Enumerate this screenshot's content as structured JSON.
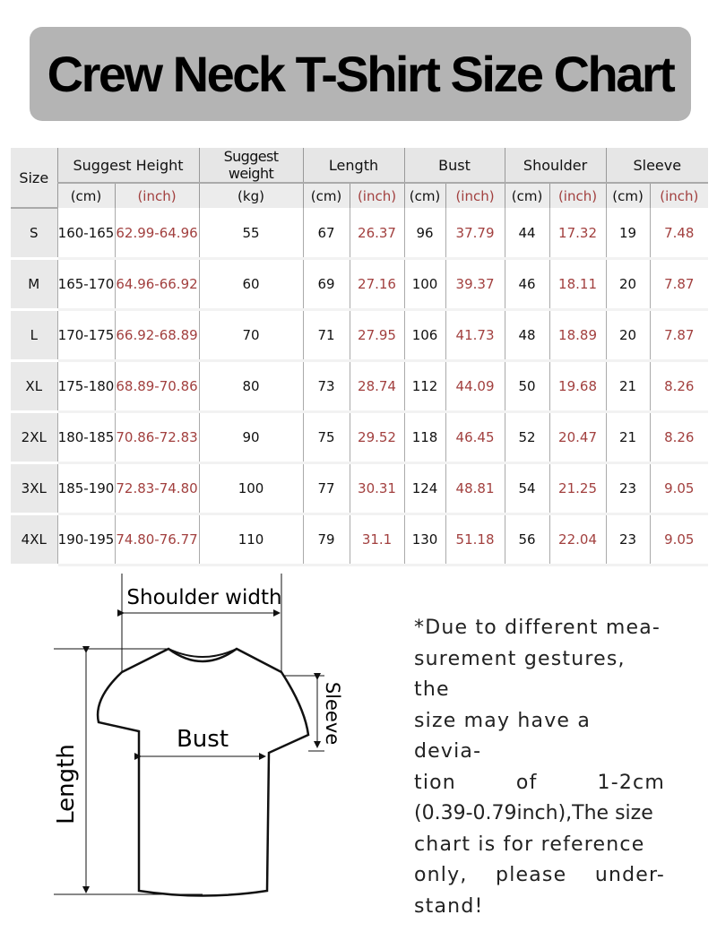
{
  "title": "Crew Neck T-Shirt Size Chart",
  "table": {
    "headers": {
      "size": "Size",
      "height": "Suggest Height",
      "weight": "Suggest weight",
      "length": "Length",
      "bust": "Bust",
      "shoulder": "Shoulder",
      "sleeve": "Sleeve"
    },
    "units": {
      "cm": "(cm)",
      "inch": "(inch)",
      "kg": "(kg)"
    },
    "rows": [
      {
        "size": "S",
        "h_cm": "160-165",
        "h_in": "62.99-64.96",
        "kg": "55",
        "len_cm": "67",
        "len_in": "26.37",
        "bust_cm": "96",
        "bust_in": "37.79",
        "sh_cm": "44",
        "sh_in": "17.32",
        "sl_cm": "19",
        "sl_in": "7.48"
      },
      {
        "size": "M",
        "h_cm": "165-170",
        "h_in": "64.96-66.92",
        "kg": "60",
        "len_cm": "69",
        "len_in": "27.16",
        "bust_cm": "100",
        "bust_in": "39.37",
        "sh_cm": "46",
        "sh_in": "18.11",
        "sl_cm": "20",
        "sl_in": "7.87"
      },
      {
        "size": "L",
        "h_cm": "170-175",
        "h_in": "66.92-68.89",
        "kg": "70",
        "len_cm": "71",
        "len_in": "27.95",
        "bust_cm": "106",
        "bust_in": "41.73",
        "sh_cm": "48",
        "sh_in": "18.89",
        "sl_cm": "20",
        "sl_in": "7.87"
      },
      {
        "size": "XL",
        "h_cm": "175-180",
        "h_in": "68.89-70.86",
        "kg": "80",
        "len_cm": "73",
        "len_in": "28.74",
        "bust_cm": "112",
        "bust_in": "44.09",
        "sh_cm": "50",
        "sh_in": "19.68",
        "sl_cm": "21",
        "sl_in": "8.26"
      },
      {
        "size": "2XL",
        "h_cm": "180-185",
        "h_in": "70.86-72.83",
        "kg": "90",
        "len_cm": "75",
        "len_in": "29.52",
        "bust_cm": "118",
        "bust_in": "46.45",
        "sh_cm": "52",
        "sh_in": "20.47",
        "sl_cm": "21",
        "sl_in": "8.26"
      },
      {
        "size": "3XL",
        "h_cm": "185-190",
        "h_in": "72.83-74.80",
        "kg": "100",
        "len_cm": "77",
        "len_in": "30.31",
        "bust_cm": "124",
        "bust_in": "48.81",
        "sh_cm": "54",
        "sh_in": "21.25",
        "sl_cm": "23",
        "sl_in": "9.05"
      },
      {
        "size": "4XL",
        "h_cm": "190-195",
        "h_in": "74.80-76.77",
        "kg": "110",
        "len_cm": "79",
        "len_in": "31.1",
        "bust_cm": "130",
        "bust_in": "51.18",
        "sh_cm": "56",
        "sh_in": "22.04",
        "sl_cm": "23",
        "sl_in": "9.05"
      }
    ]
  },
  "diagram": {
    "shoulder": "Shoulder width",
    "bust": "Bust",
    "length": "Length",
    "sleeve": "Sleeve"
  },
  "note": [
    "*Due to different mea-",
    "surement gestures, the",
    "size may have a devia-",
    "tion of 1-2cm",
    "(0.39-0.79inch),The size",
    "chart is for reference",
    "only, please under-",
    "stand!"
  ],
  "colors": {
    "inch_text": "#a2403f",
    "banner": "#b4b4b4",
    "header": "#e6e6e6"
  }
}
